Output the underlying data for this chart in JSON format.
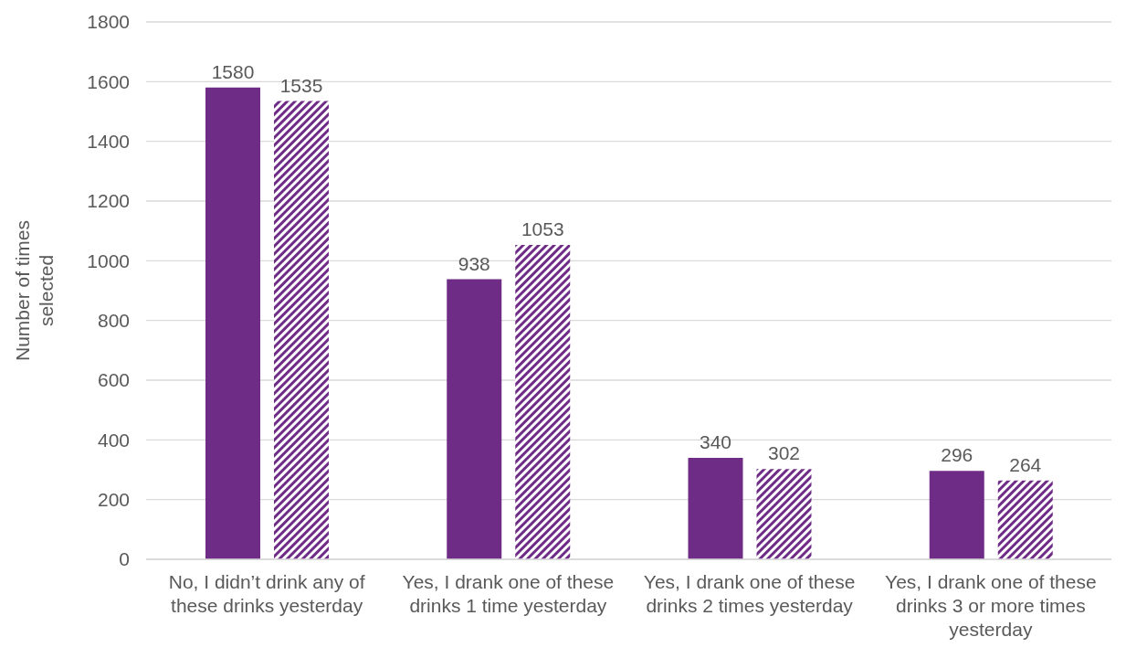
{
  "chart_data": {
    "type": "bar",
    "ylabel": "Number of times selected",
    "categories": [
      "No, I didn’t drink any of these drinks yesterday",
      "Yes, I drank one of these drinks 1 time yesterday",
      "Yes, I drank one of these drinks 2 times yesterday",
      "Yes, I drank one of these drinks 3 or more times yesterday"
    ],
    "series": [
      {
        "color": "#6f2c87",
        "values": [
          1580,
          938,
          340,
          296
        ]
      },
      {
        "color": "#6f2c87",
        "values": [
          1535,
          1053,
          302,
          264
        ]
      }
    ],
    "ylim": [
      0,
      1800
    ],
    "yticks": [
      0,
      200,
      400,
      600,
      800,
      1000,
      1200,
      1400,
      1600,
      1800
    ],
    "grid": "y",
    "legend": false,
    "data_labels": true
  }
}
